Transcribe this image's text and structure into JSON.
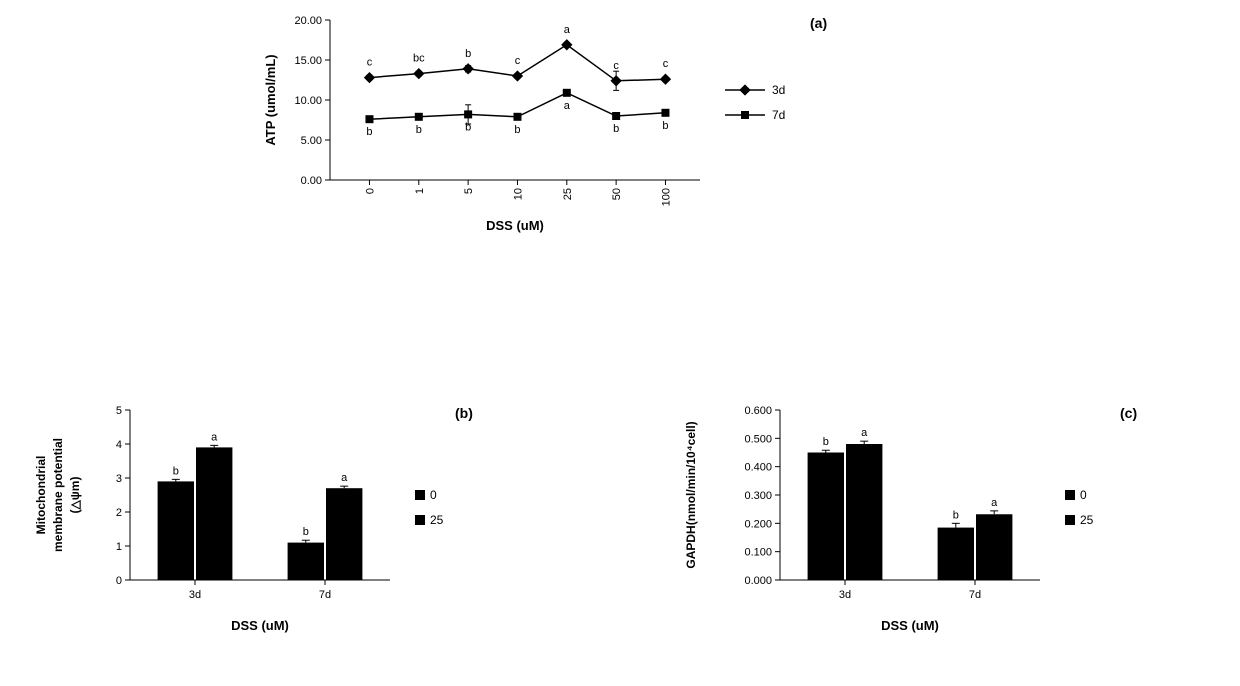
{
  "figure_a": {
    "type": "line",
    "panel_label": "(a)",
    "ylabel": "ATP (umol/mL)",
    "xlabel": "DSS (uM)",
    "x_categories": [
      "0",
      "1",
      "5",
      "10",
      "25",
      "50",
      "100"
    ],
    "ylim": [
      0,
      20
    ],
    "ytick_step": 5,
    "ytick_labels": [
      "0.00",
      "5.00",
      "10.00",
      "15.00",
      "20.00"
    ],
    "series": [
      {
        "name": "3d",
        "marker": "diamond",
        "values": [
          12.8,
          13.3,
          13.9,
          13.0,
          16.9,
          12.4,
          12.6
        ],
        "err": [
          0.3,
          0.3,
          0.4,
          0.3,
          0.3,
          1.2,
          0.3
        ],
        "sig": [
          "c",
          "bc",
          "b",
          "c",
          "a",
          "c",
          "c"
        ],
        "legend": "3d"
      },
      {
        "name": "7d",
        "marker": "square",
        "values": [
          7.6,
          7.9,
          8.2,
          7.9,
          10.9,
          8.0,
          8.4
        ],
        "err": [
          0.3,
          0.3,
          1.2,
          0.3,
          0.3,
          0.3,
          0.3
        ],
        "sig": [
          "b",
          "b",
          "b",
          "b",
          "a",
          "b",
          "b"
        ],
        "legend": "7d"
      }
    ],
    "colors": {
      "line": "#000000",
      "marker_fill": "#000000",
      "background": "#ffffff"
    },
    "marker_size": 8,
    "line_width": 1.5,
    "label_fontsize": 12,
    "axis_fontsize": 11
  },
  "figure_b": {
    "type": "bar",
    "panel_label": "(b)",
    "ylabel_line1": "Mitochondrial",
    "ylabel_line2": "membrane potential",
    "ylabel_line3": "(△ψm)",
    "xlabel": "DSS (uM)",
    "groups": [
      "3d",
      "7d"
    ],
    "legend": [
      "0",
      "25"
    ],
    "values": {
      "3d": [
        2.9,
        3.9
      ],
      "7d": [
        1.1,
        2.7
      ]
    },
    "err": {
      "3d": [
        0.06,
        0.06
      ],
      "7d": [
        0.07,
        0.06
      ]
    },
    "sig": {
      "3d": [
        "b",
        "a"
      ],
      "7d": [
        "b",
        "a"
      ]
    },
    "ylim": [
      0,
      5
    ],
    "ytick_step": 1,
    "ytick_labels": [
      "0",
      "1",
      "2",
      "3",
      "4",
      "5"
    ],
    "bar_color": "#000000",
    "bar_width": 0.35,
    "background": "#ffffff",
    "label_fontsize": 12,
    "axis_fontsize": 11
  },
  "figure_c": {
    "type": "bar",
    "panel_label": "(c)",
    "ylabel": "GAPDH(nmol/min/10⁴cell)",
    "xlabel": "DSS (uM)",
    "groups": [
      "3d",
      "7d"
    ],
    "legend": [
      "0",
      "25"
    ],
    "values": {
      "3d": [
        0.45,
        0.48
      ],
      "7d": [
        0.185,
        0.232
      ]
    },
    "err": {
      "3d": [
        0.008,
        0.01
      ],
      "7d": [
        0.015,
        0.012
      ]
    },
    "sig": {
      "3d": [
        "b",
        "a"
      ],
      "7d": [
        "b",
        "a"
      ]
    },
    "ylim": [
      0,
      0.6
    ],
    "ytick_step": 0.1,
    "ytick_labels": [
      "0.000",
      "0.100",
      "0.200",
      "0.300",
      "0.400",
      "0.500",
      "0.600"
    ],
    "bar_color": "#000000",
    "bar_width": 0.35,
    "background": "#ffffff",
    "label_fontsize": 12,
    "axis_fontsize": 11
  }
}
